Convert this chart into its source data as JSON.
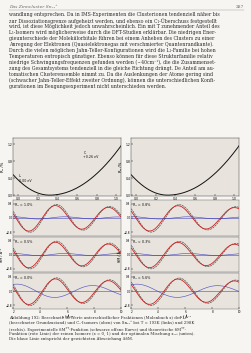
{
  "page_number": "287",
  "header_left": "Das Zinncluster Sn₁₃⁺",
  "bg_color": "#f7f5f2",
  "text_color": "#2a2a2a",
  "body_lines": [
    "wandlung entsprechen. Da in IMS-Experimenten die Clusterionen tendenziell näher bis",
    "zur Dissoziationsgrenze aufgeheizt werden, und ebenso ein C₁-Überschuss festgestellt",
    "wird, ist diese Möglichkeit jedoch unwahrscheinlich. Ein mit T zunehmender Anteil des",
    "L₁-Isomers wird möglicherweise durch die DFT-Studien erklärbar. Die niedrigen Ener-",
    "gieunterschiede der Molekülorbitale führen bei einem Anheben des Clusters zu einer",
    "Anregung der Elektronen (Quasielektronegas mit verschmierter Quantenrandkante).",
    "Durch die vielen möglichen Jahn-Teller-Konfigurationen wird die L₁-Familie bei hohen",
    "Temperaturen entropisch günstiger. Ebenso können für diese Strukturfamilie relativ",
    "niedrige Schwingungsfrequenzen gefunden werden (~40cm⁻¹), die die Zusammenset-",
    "zung des Gesamtsystems tendenziell in die gleiche Richtung drängt. De Anteil am au-",
    "tomatischen Clusterensemble nimmt zu. Da die Auslenkungen der Atome gering sind",
    "(schwacher Jahn-Teller-Effekt zweiter Ordnung), können die unterschiedlichen Konfi-",
    "gurationen im Beugungsexperiment nicht unterschieden werden."
  ],
  "caption_lines": [
    "Abbildung 192: Berechnete R₀-Werte unterschiedlicher Fraktionen (Molenbuch x) des L₁-",
    "(berechneter Grundzustand) und C₁-Isomers (oben) von Sn₁₃⁺ bei T = 193K (links) und 298K",
    "(rechts). Experimentelle δMᵀᵀ-Funktion (schwarze offene Kurve) und theoretische δMᵀᵀ-",
    "Funktion (rote Linie) der reinen Isomere (x = 0, 1) und der optimalen Mischung xₒₙₜ (unten).",
    "Die blaue Linie entspricht der gewichteten Abweichung ΔδM."
  ],
  "left_labels": [
    "R₀ = 1.0%",
    "R₀ = 0.5%",
    "R₀ = 0.0%"
  ],
  "right_labels": [
    "R₀ = 0.8%",
    "R₀ = 0.3%",
    "R₀ = 5.6%"
  ],
  "left_title": "x (C₁)",
  "right_title": "x (C₁)",
  "pot_ylabel_left": "R₀ /%",
  "pot_ylabel_right": "R₀ /%",
  "diff_ylabel_left": "δM / Å⁻¹",
  "diff_ylabel_right": "δM / Å⁻¹",
  "diff_xlabel": "s / Å⁻¹",
  "ann_left_top": "C₁\n+0.26 eV",
  "ann_left_bot": "L₁\n0.00 eV",
  "plot_facecolor": "#e8e4dd",
  "curve_color": "#111111",
  "red_color": "#cc2222",
  "blue_color": "#3333bb",
  "grey_color": "#888888"
}
